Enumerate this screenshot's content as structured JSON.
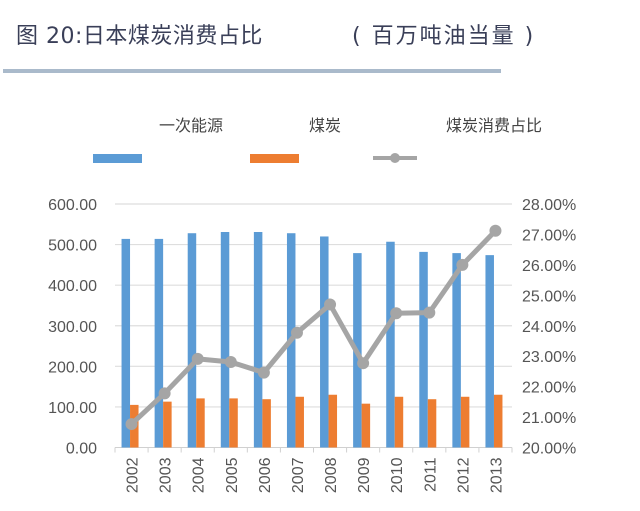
{
  "header": {
    "title": "图 20:日本煤炭消费占比",
    "unit": "( 百万吨油当量 )"
  },
  "chart_data": {
    "type": "bar",
    "categories": [
      "2002",
      "2003",
      "2004",
      "2005",
      "2006",
      "2007",
      "2008",
      "2009",
      "2010",
      "2011",
      "2012",
      "2013"
    ],
    "series": [
      {
        "name": "一次能源",
        "type": "bar",
        "axis": "left",
        "color": "#5b9bd5",
        "values": [
          514,
          514,
          528,
          531,
          531,
          528,
          520,
          479,
          507,
          482,
          479,
          474
        ]
      },
      {
        "name": "煤炭",
        "type": "bar",
        "axis": "left",
        "color": "#ed7d31",
        "values": [
          105,
          113,
          121,
          121,
          119,
          125,
          130,
          108,
          125,
          119,
          125,
          130
        ]
      },
      {
        "name": "煤炭消费占比",
        "type": "line",
        "axis": "right",
        "color": "#a5a5a5",
        "values": [
          20.77,
          21.78,
          22.91,
          22.81,
          22.46,
          23.77,
          24.7,
          22.77,
          24.41,
          24.43,
          26.0,
          27.12
        ]
      }
    ],
    "y_left": {
      "lim": [
        0,
        600
      ],
      "ticks": [
        "0.00",
        "100.00",
        "200.00",
        "300.00",
        "400.00",
        "500.00",
        "600.00"
      ]
    },
    "y_right": {
      "lim": [
        20,
        28
      ],
      "ticks": [
        "20.00%",
        "21.00%",
        "22.00%",
        "23.00%",
        "24.00%",
        "25.00%",
        "26.00%",
        "27.00%",
        "28.00%"
      ]
    },
    "grid": true,
    "legend": "top"
  }
}
